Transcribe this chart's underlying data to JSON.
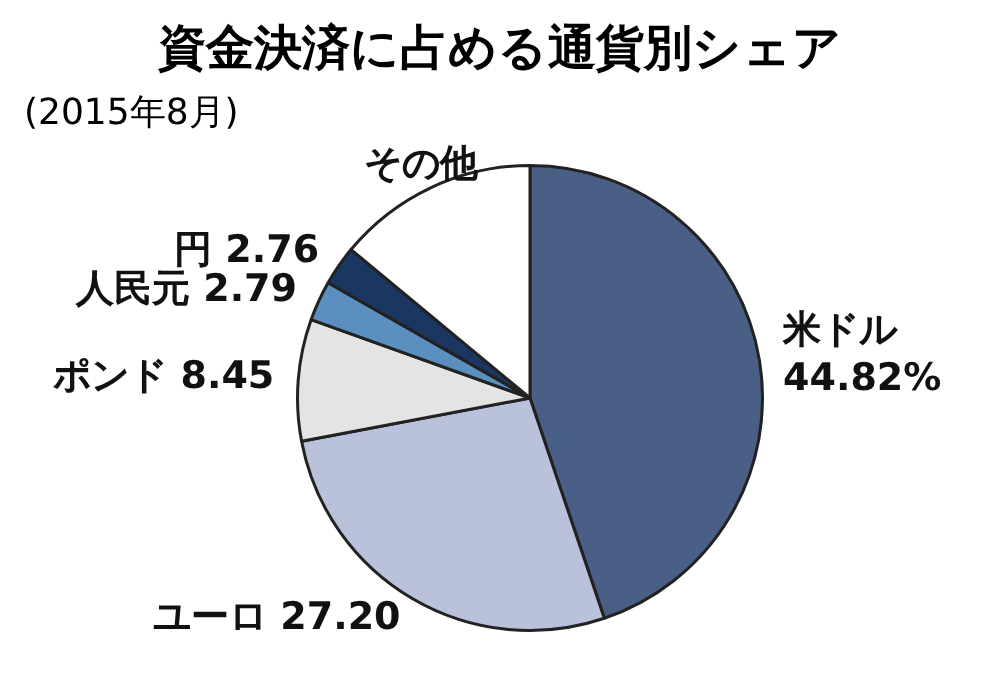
{
  "chart_data": {
    "type": "pie",
    "title": "資金決済に占める通貨別シェア",
    "subtitle": "(2015年8月)",
    "categories": [
      "米ドル",
      "ユーロ",
      "ポンド",
      "人民元",
      "円",
      "その他"
    ],
    "values": [
      44.82,
      27.2,
      8.45,
      2.79,
      2.76,
      13.98
    ],
    "value_labels": [
      "44.82%",
      "27.20",
      "8.45",
      "2.79",
      "2.76",
      null
    ],
    "colors": [
      "#4a5f86",
      "#b9c1db",
      "#e4e4e4",
      "#5b8fc0",
      "#1b3660",
      "#ffffff"
    ],
    "legend": false
  }
}
